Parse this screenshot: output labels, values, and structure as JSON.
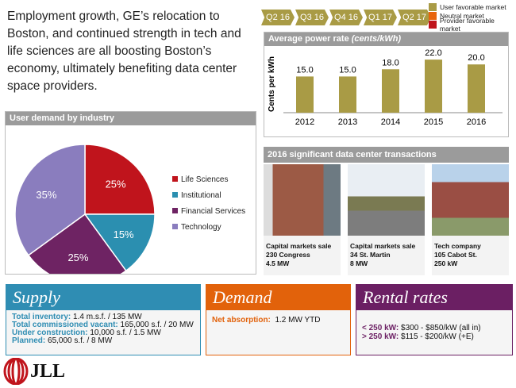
{
  "intro": "Employment growth, GE’s relocation to Boston, and continued strength in tech and life sciences are all boosting Boston’s economy, ultimately benefiting data center space providers.",
  "quarters": [
    "Q2 16",
    "Q3 16",
    "Q4 16",
    "Q1 17",
    "Q2 17"
  ],
  "market_legend": [
    {
      "label": "User favorable market",
      "color": "#a99b45"
    },
    {
      "label": "Neutral market",
      "color": "#e8650d"
    },
    {
      "label": "Provider favorable market",
      "color": "#c0141c"
    }
  ],
  "chart_data": [
    {
      "type": "pie",
      "title": "User demand by industry",
      "categories": [
        "Life Sciences",
        "Institutional",
        "Financial Services",
        "Technology"
      ],
      "values": [
        25,
        15,
        25,
        35
      ],
      "labels": [
        "25%",
        "15%",
        "25%",
        "35%"
      ],
      "colors": [
        "#c0141c",
        "#2b8fb0",
        "#6e2363",
        "#8a7dbe"
      ],
      "legend": "right"
    },
    {
      "type": "bar",
      "title_main": "Average power rate ",
      "title_unit": "(cents/kWh)",
      "ylabel": "Cents per kWh",
      "categories": [
        "2012",
        "2013",
        "2014",
        "2015",
        "2016"
      ],
      "values": [
        15.0,
        15.0,
        18.0,
        22.0,
        20.0
      ],
      "labels": [
        "15.0",
        "15.0",
        "18.0",
        "22.0",
        "20.0"
      ],
      "color": "#a99b45",
      "ylim": [
        0,
        25
      ]
    }
  ],
  "transactions": {
    "title": "2016  significant data center transactions",
    "items": [
      {
        "type": "Capital markets sale",
        "address": "230 Congress",
        "size": "4.5 MW"
      },
      {
        "type": "Capital markets sale",
        "address": "34 St. Martin",
        "size": "8 MW"
      },
      {
        "type": "Tech company",
        "address": "105 Cabot St.",
        "size": "250 kW"
      }
    ]
  },
  "supply": {
    "title": "Supply",
    "color": "#2f8db3",
    "rows": [
      {
        "label": "Total inventory:",
        "value": " 1.4 m.s.f. / 135 MW"
      },
      {
        "label": "Total commissioned vacant:",
        "value": " 165,000 s.f. / 20 MW"
      },
      {
        "label": "Under construction:",
        "value": " 10,000 s.f. / 1.5 MW"
      },
      {
        "label": "Planned:",
        "value": " 65,000 s.f. / 8 MW"
      }
    ]
  },
  "demand": {
    "title": "Demand",
    "color": "#e2620b",
    "label": "Net absorption:",
    "value": "  1.2 MW YTD"
  },
  "rental": {
    "title": "Rental rates",
    "color": "#6b1f63",
    "rows": [
      {
        "label": "< 250 kW:",
        "value": " $300 - $850/kW (all in)"
      },
      {
        "label": "> 250 kW:",
        "value": " $115 - $200/kW (+E)"
      }
    ]
  },
  "logo": "JLL"
}
